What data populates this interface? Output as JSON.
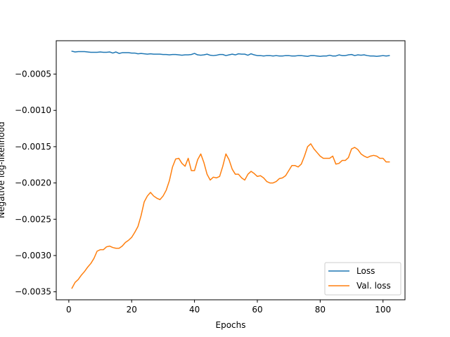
{
  "chart_data": {
    "type": "line",
    "title": "",
    "xlabel": "Epochs",
    "ylabel": "Negative log-likelihood",
    "xlim": [
      -4,
      107
    ],
    "ylim": [
      -0.00361,
      -4e-05
    ],
    "x_ticks": [
      0,
      20,
      40,
      60,
      80,
      100
    ],
    "x_tick_labels": [
      "0",
      "20",
      "40",
      "60",
      "80",
      "100"
    ],
    "y_ticks": [
      -0.0035,
      -0.003,
      -0.0025,
      -0.002,
      -0.0015,
      -0.001,
      -0.0005
    ],
    "y_tick_labels": [
      "−0.0035",
      "−0.0030",
      "−0.0025",
      "−0.0020",
      "−0.0015",
      "−0.0010",
      "−0.0005"
    ],
    "grid": false,
    "legend_position": "lower-right",
    "x": [
      1,
      2,
      3,
      4,
      5,
      6,
      7,
      8,
      9,
      10,
      11,
      12,
      13,
      14,
      15,
      16,
      17,
      18,
      19,
      20,
      21,
      22,
      23,
      24,
      25,
      26,
      27,
      28,
      29,
      30,
      31,
      32,
      33,
      34,
      35,
      36,
      37,
      38,
      39,
      40,
      41,
      42,
      43,
      44,
      45,
      46,
      47,
      48,
      49,
      50,
      51,
      52,
      53,
      54,
      55,
      56,
      57,
      58,
      59,
      60,
      61,
      62,
      63,
      64,
      65,
      66,
      67,
      68,
      69,
      70,
      71,
      72,
      73,
      74,
      75,
      76,
      77,
      78,
      79,
      80,
      81,
      82,
      83,
      84,
      85,
      86,
      87,
      88,
      89,
      90,
      91,
      92,
      93,
      94,
      95,
      96,
      97,
      98,
      99,
      100,
      101,
      102
    ],
    "series": [
      {
        "name": "Loss",
        "color": "#1f77b4",
        "values": [
          -0.000185,
          -0.000195,
          -0.00019,
          -0.00019,
          -0.00019,
          -0.000195,
          -0.0002,
          -0.0002,
          -0.0002,
          -0.000195,
          -0.0002,
          -0.0002,
          -0.000195,
          -0.00021,
          -0.000195,
          -0.000215,
          -0.000205,
          -0.000205,
          -0.000205,
          -0.00021,
          -0.00021,
          -0.00022,
          -0.000215,
          -0.00022,
          -0.000225,
          -0.00022,
          -0.000225,
          -0.000225,
          -0.000225,
          -0.00023,
          -0.00023,
          -0.000235,
          -0.00023,
          -0.00023,
          -0.000235,
          -0.00024,
          -0.000235,
          -0.000235,
          -0.00023,
          -0.000215,
          -0.000235,
          -0.00024,
          -0.000235,
          -0.000225,
          -0.00024,
          -0.000245,
          -0.00024,
          -0.00023,
          -0.00023,
          -0.000245,
          -0.000235,
          -0.000225,
          -0.000235,
          -0.00022,
          -0.000225,
          -0.000225,
          -0.00024,
          -0.00022,
          -0.000235,
          -0.000245,
          -0.000245,
          -0.00025,
          -0.000245,
          -0.000245,
          -0.00025,
          -0.000245,
          -0.00025,
          -0.00025,
          -0.000245,
          -0.000245,
          -0.00025,
          -0.00025,
          -0.000245,
          -0.000245,
          -0.00025,
          -0.000255,
          -0.000245,
          -0.000245,
          -0.00025,
          -0.000255,
          -0.00025,
          -0.00025,
          -0.00024,
          -0.00025,
          -0.00025,
          -0.000235,
          -0.000245,
          -0.000245,
          -0.000235,
          -0.00023,
          -0.000245,
          -0.000235,
          -0.00024,
          -0.000235,
          -0.000245,
          -0.00025,
          -0.00025,
          -0.000255,
          -0.00025,
          -0.000245,
          -0.00025,
          -0.000245
        ]
      },
      {
        "name": "Val. loss",
        "color": "#ff7f0e",
        "values": [
          -0.00345,
          -0.00337,
          -0.00333,
          -0.00327,
          -0.00322,
          -0.00316,
          -0.00311,
          -0.00304,
          -0.00294,
          -0.00292,
          -0.00292,
          -0.00288,
          -0.00287,
          -0.00289,
          -0.0029,
          -0.0029,
          -0.00287,
          -0.00282,
          -0.00279,
          -0.00275,
          -0.00268,
          -0.0026,
          -0.00245,
          -0.00226,
          -0.00218,
          -0.00213,
          -0.00218,
          -0.00221,
          -0.00223,
          -0.00218,
          -0.0021,
          -0.00197,
          -0.00178,
          -0.00167,
          -0.00166,
          -0.00173,
          -0.00177,
          -0.00166,
          -0.00183,
          -0.00183,
          -0.00168,
          -0.0016,
          -0.00172,
          -0.00188,
          -0.00196,
          -0.00192,
          -0.00193,
          -0.00191,
          -0.00177,
          -0.0016,
          -0.00168,
          -0.00181,
          -0.00188,
          -0.00188,
          -0.00193,
          -0.00196,
          -0.00188,
          -0.00184,
          -0.00187,
          -0.00191,
          -0.0019,
          -0.00193,
          -0.00198,
          -0.002,
          -0.002,
          -0.00198,
          -0.00194,
          -0.00193,
          -0.0019,
          -0.00183,
          -0.00176,
          -0.00176,
          -0.00178,
          -0.00174,
          -0.00163,
          -0.0015,
          -0.00146,
          -0.00153,
          -0.00158,
          -0.00163,
          -0.00166,
          -0.00166,
          -0.00166,
          -0.00163,
          -0.00174,
          -0.00173,
          -0.00169,
          -0.00169,
          -0.00165,
          -0.00153,
          -0.00151,
          -0.00154,
          -0.0016,
          -0.00163,
          -0.00165,
          -0.00163,
          -0.00162,
          -0.00163,
          -0.00166,
          -0.00166,
          -0.00171,
          -0.00171
        ]
      }
    ]
  }
}
